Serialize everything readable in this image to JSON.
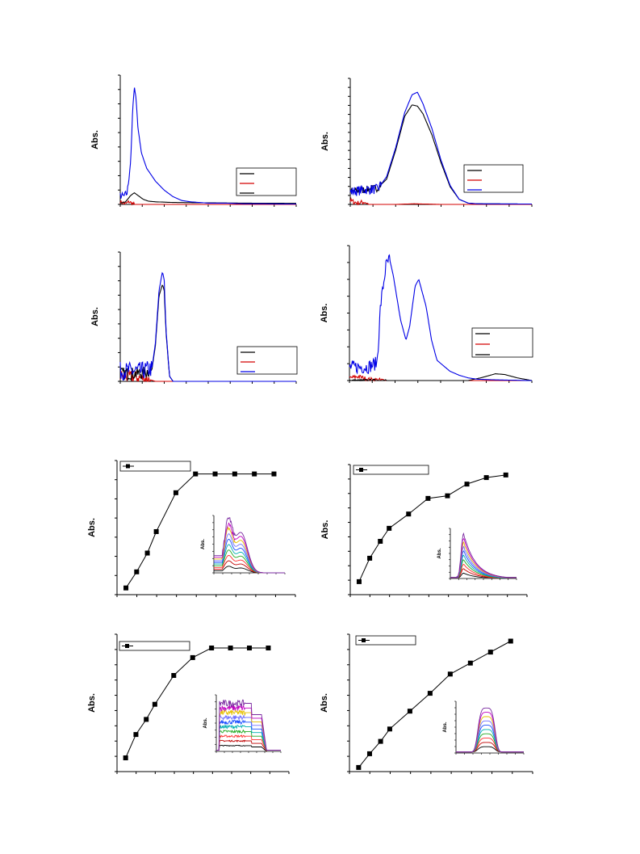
{
  "axis_label_abs": "Abs.",
  "colors": {
    "black": "#000000",
    "red": "#d40000",
    "blue": "#0000e6",
    "inset_palette": [
      "#000000",
      "#c00000",
      "#ff3030",
      "#22aa22",
      "#00b0b0",
      "#1a4dff",
      "#7070ff",
      "#e6c000",
      "#c000c0",
      "#7a2aa0"
    ]
  },
  "chart_data": [
    {
      "id": "spectrum-a",
      "type": "line",
      "xlim": [
        0,
        1
      ],
      "ylim": [
        0,
        1
      ],
      "ylabel": "Abs.",
      "legend": "bottom-right",
      "legend_colors": [
        "#000000",
        "#d40000",
        "#000000"
      ],
      "series": [
        {
          "color": "#0000e6",
          "x": [
            0,
            0.02,
            0.04,
            0.06,
            0.07,
            0.08,
            0.09,
            0.1,
            0.12,
            0.15,
            0.2,
            0.25,
            0.3,
            0.35,
            0.4,
            0.5,
            0.6,
            0.7,
            0.8,
            0.9,
            1
          ],
          "y": [
            0.07,
            0.06,
            0.09,
            0.35,
            0.72,
            0.91,
            0.82,
            0.6,
            0.4,
            0.28,
            0.18,
            0.11,
            0.06,
            0.03,
            0.02,
            0.01,
            0.01,
            0.005,
            0.005,
            0.004,
            0.003
          ],
          "noise": [
            0,
            0.06,
            0.03
          ]
        },
        {
          "color": "#000000",
          "x": [
            0,
            0.03,
            0.06,
            0.08,
            0.1,
            0.13,
            0.16,
            0.2,
            0.3,
            0.5,
            0.7,
            1
          ],
          "y": [
            0.01,
            0.02,
            0.07,
            0.09,
            0.07,
            0.04,
            0.025,
            0.02,
            0.015,
            0.012,
            0.01,
            0.008
          ]
        },
        {
          "color": "#d40000",
          "x": [
            0,
            0.03,
            0.05,
            0.08,
            1
          ],
          "y": [
            0.02,
            0.005,
            0.02,
            0,
            0
          ],
          "noise": [
            0,
            0.08,
            0.015
          ]
        }
      ]
    },
    {
      "id": "spectrum-b",
      "type": "line",
      "xlim": [
        0,
        1
      ],
      "ylim": [
        0,
        1
      ],
      "ylabel": "Abs.",
      "legend": "bottom-right",
      "legend_colors": [
        "#000000",
        "#d40000",
        "#0000e6"
      ],
      "series": [
        {
          "color": "#0000e6",
          "x": [
            0,
            0.1,
            0.15,
            0.2,
            0.25,
            0.3,
            0.34,
            0.37,
            0.4,
            0.45,
            0.5,
            0.55,
            0.6,
            0.65,
            0.7,
            1
          ],
          "y": [
            0.1,
            0.12,
            0.12,
            0.22,
            0.45,
            0.73,
            0.87,
            0.89,
            0.8,
            0.6,
            0.35,
            0.15,
            0.04,
            0.01,
            0.005,
            0.003
          ],
          "noise": [
            0,
            0.17,
            0.04
          ]
        },
        {
          "color": "#000000",
          "x": [
            0,
            0.1,
            0.15,
            0.2,
            0.25,
            0.3,
            0.34,
            0.37,
            0.4,
            0.45,
            0.5,
            0.55,
            0.6,
            0.65,
            0.7,
            1
          ],
          "y": [
            0.1,
            0.12,
            0.13,
            0.2,
            0.43,
            0.7,
            0.79,
            0.78,
            0.72,
            0.55,
            0.33,
            0.14,
            0.04,
            0.01,
            0.005,
            0.003
          ],
          "noise": [
            0,
            0.17,
            0.03
          ]
        },
        {
          "color": "#d40000",
          "x": [
            0,
            0.04,
            0.08,
            0.1,
            0.25,
            0.35,
            0.5,
            1
          ],
          "y": [
            0.03,
            0.01,
            0.02,
            0,
            0,
            0.005,
            0,
            0
          ],
          "noise": [
            0,
            0.1,
            0.02
          ]
        }
      ]
    },
    {
      "id": "spectrum-c",
      "type": "line",
      "xlim": [
        0,
        1
      ],
      "ylim": [
        0,
        1
      ],
      "ylabel": "Abs.",
      "legend": "bottom-right",
      "legend_colors": [
        "#000000",
        "#d40000",
        "#0000e6"
      ],
      "series": [
        {
          "color": "#0000e6",
          "x": [
            0,
            0.12,
            0.18,
            0.2,
            0.22,
            0.24,
            0.25,
            0.26,
            0.28,
            0.3,
            1
          ],
          "y": [
            0.08,
            0.08,
            0.1,
            0.3,
            0.7,
            0.85,
            0.78,
            0.4,
            0.04,
            0,
            0
          ],
          "noise": [
            0,
            0.18,
            0.07
          ]
        },
        {
          "color": "#000000",
          "x": [
            0,
            0.12,
            0.18,
            0.2,
            0.22,
            0.24,
            0.25,
            0.26,
            0.28,
            0.3,
            1
          ],
          "y": [
            0.06,
            0.06,
            0.09,
            0.28,
            0.66,
            0.75,
            0.7,
            0.38,
            0.04,
            0,
            0
          ],
          "noise": [
            0,
            0.18,
            0.05
          ]
        },
        {
          "color": "#d40000",
          "x": [
            0,
            0.1,
            0.15,
            0.2,
            1
          ],
          "y": [
            0.04,
            0.03,
            0.02,
            0,
            0
          ],
          "noise": [
            0,
            0.17,
            0.05
          ]
        }
      ]
    },
    {
      "id": "spectrum-d",
      "type": "line",
      "xlim": [
        0,
        1
      ],
      "ylim": [
        0,
        1
      ],
      "ylabel": "Abs.",
      "legend": "bottom-right",
      "legend_colors": [
        "#000000",
        "#d40000",
        "#000000"
      ],
      "series": [
        {
          "color": "#0000e6",
          "x": [
            0,
            0.1,
            0.15,
            0.16,
            0.17,
            0.2,
            0.22,
            0.24,
            0.28,
            0.31,
            0.33,
            0.36,
            0.38,
            0.42,
            0.45,
            0.48,
            0.55,
            0.6,
            0.65,
            0.7,
            0.8,
            1
          ],
          "y": [
            0.1,
            0.1,
            0.13,
            0.3,
            0.55,
            0.85,
            0.9,
            0.78,
            0.45,
            0.3,
            0.4,
            0.7,
            0.75,
            0.55,
            0.3,
            0.15,
            0.07,
            0.04,
            0.02,
            0.01,
            0.005,
            0
          ],
          "noise": [
            0,
            0.22,
            0.05
          ]
        },
        {
          "color": "#000000",
          "x": [
            0,
            0.65,
            0.72,
            0.8,
            0.85,
            0.92,
            1
          ],
          "y": [
            0,
            0,
            0.02,
            0.05,
            0.045,
            0.02,
            0
          ],
          "noise": [
            0,
            0.2,
            0.01
          ]
        },
        {
          "color": "#d40000",
          "x": [
            0,
            0.05,
            0.1,
            0.2,
            1
          ],
          "y": [
            0.02,
            0.03,
            0.01,
            0,
            0
          ],
          "noise": [
            0,
            0.2,
            0.015
          ]
        }
      ]
    },
    {
      "id": "titration-e",
      "type": "line",
      "xlim": [
        0,
        1
      ],
      "ylim": [
        0,
        1
      ],
      "ylabel": "Abs.",
      "legend": "top-left",
      "x": [
        0.05,
        0.11,
        0.17,
        0.22,
        0.33,
        0.44,
        0.55,
        0.66,
        0.77,
        0.88
      ],
      "y": [
        0.05,
        0.17,
        0.31,
        0.47,
        0.76,
        0.9,
        0.9,
        0.9,
        0.9,
        0.9
      ],
      "inset": {
        "ylabel": "Abs.",
        "xlim": [
          0,
          1
        ],
        "ylim": [
          0,
          1
        ],
        "kind": "twin-peak",
        "curves": 10
      }
    },
    {
      "id": "titration-f",
      "type": "line",
      "xlim": [
        0,
        1
      ],
      "ylim": [
        0,
        1
      ],
      "ylabel": "Abs.",
      "legend": "top-left",
      "x": [
        0.05,
        0.11,
        0.17,
        0.22,
        0.33,
        0.44,
        0.55,
        0.66,
        0.77,
        0.88
      ],
      "y": [
        0.1,
        0.28,
        0.41,
        0.51,
        0.62,
        0.74,
        0.76,
        0.85,
        0.9,
        0.92
      ],
      "inset": {
        "ylabel": "Abs.",
        "xlim": [
          0,
          1
        ],
        "ylim": [
          0,
          1
        ],
        "kind": "skewed",
        "curves": 10
      }
    },
    {
      "id": "titration-g",
      "type": "line",
      "xlim": [
        0,
        1
      ],
      "ylim": [
        0,
        1
      ],
      "ylabel": "Abs.",
      "legend": "top-left",
      "x": [
        0.05,
        0.11,
        0.17,
        0.22,
        0.33,
        0.44,
        0.55,
        0.66,
        0.77,
        0.88
      ],
      "y": [
        0.1,
        0.27,
        0.38,
        0.49,
        0.7,
        0.83,
        0.9,
        0.9,
        0.9,
        0.9
      ],
      "inset": {
        "ylabel": "Abs.",
        "xlim": [
          0,
          1
        ],
        "ylim": [
          0,
          1
        ],
        "kind": "noisy-plateau",
        "curves": 10
      }
    },
    {
      "id": "titration-h",
      "type": "line",
      "xlim": [
        0,
        1
      ],
      "ylim": [
        0,
        1
      ],
      "ylabel": "Abs.",
      "legend": "top-left",
      "x": [
        0.05,
        0.11,
        0.17,
        0.22,
        0.33,
        0.44,
        0.55,
        0.66,
        0.77,
        0.88
      ],
      "y": [
        0.03,
        0.13,
        0.22,
        0.31,
        0.44,
        0.57,
        0.71,
        0.79,
        0.87,
        0.95
      ],
      "inset": {
        "ylabel": "Abs.",
        "xlim": [
          0,
          1
        ],
        "ylim": [
          0,
          1
        ],
        "kind": "single-peak",
        "curves": 10
      }
    }
  ]
}
